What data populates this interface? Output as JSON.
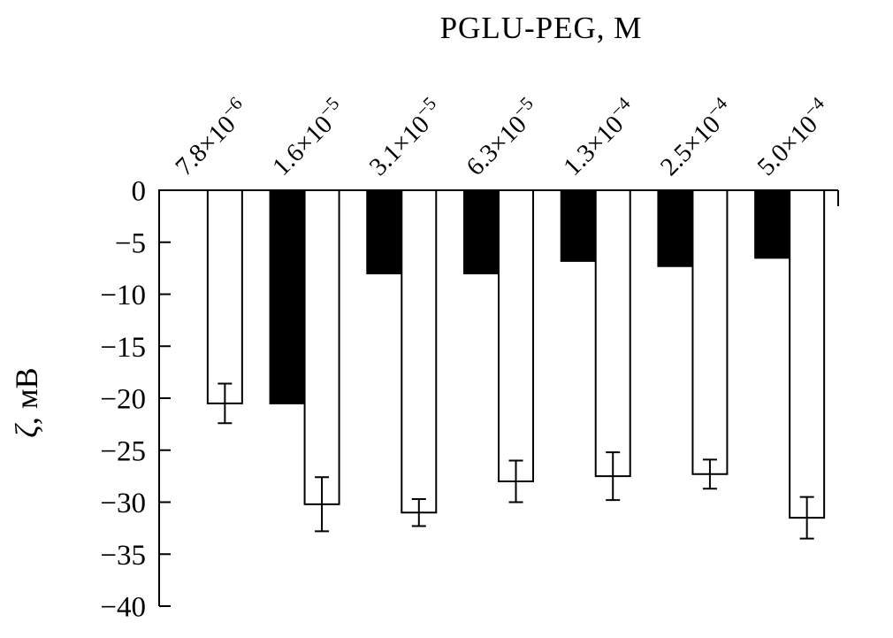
{
  "chart_data": {
    "type": "bar",
    "title": "PGLU-PEG, M",
    "ylabel": "ζ, мВ",
    "ylim": [
      -40,
      0
    ],
    "grid": false,
    "legend": "none",
    "ytick_values": [
      0,
      -5,
      -10,
      -15,
      -20,
      -25,
      -30,
      -35,
      -40
    ],
    "ytick_labels": [
      "0",
      "−5",
      "−10",
      "−15",
      "−20",
      "−25",
      "−30",
      "−35",
      "−40"
    ],
    "categories": [
      {
        "mantissa": "7.8×10",
        "exponent": "−6",
        "value": 7.8e-06
      },
      {
        "mantissa": "1.6×10",
        "exponent": "−5",
        "value": 1.6e-05
      },
      {
        "mantissa": "3.1×10",
        "exponent": "−5",
        "value": 3.1e-05
      },
      {
        "mantissa": "6.3×10",
        "exponent": "−5",
        "value": 6.3e-05
      },
      {
        "mantissa": "1.3×10",
        "exponent": "−4",
        "value": 0.00013
      },
      {
        "mantissa": "2.5×10",
        "exponent": "−4",
        "value": 0.00025
      },
      {
        "mantissa": "5.0×10",
        "exponent": "−4",
        "value": 0.0005
      }
    ],
    "series": [
      {
        "name": "filled-black-bars",
        "fill": "#000000",
        "values": [
          0,
          -20.5,
          -8,
          -8,
          -6.8,
          -7.3,
          -6.5
        ]
      },
      {
        "name": "open-white-bars",
        "fill": "#ffffff",
        "values": [
          -20.5,
          -30.2,
          -31,
          -28,
          -27.5,
          -27.3,
          -31.5
        ],
        "errors": [
          1.9,
          2.6,
          1.3,
          2.0,
          2.3,
          1.4,
          2.0
        ]
      }
    ],
    "colors": {
      "axis": "#000000",
      "bar_stroke": "#000000"
    }
  }
}
